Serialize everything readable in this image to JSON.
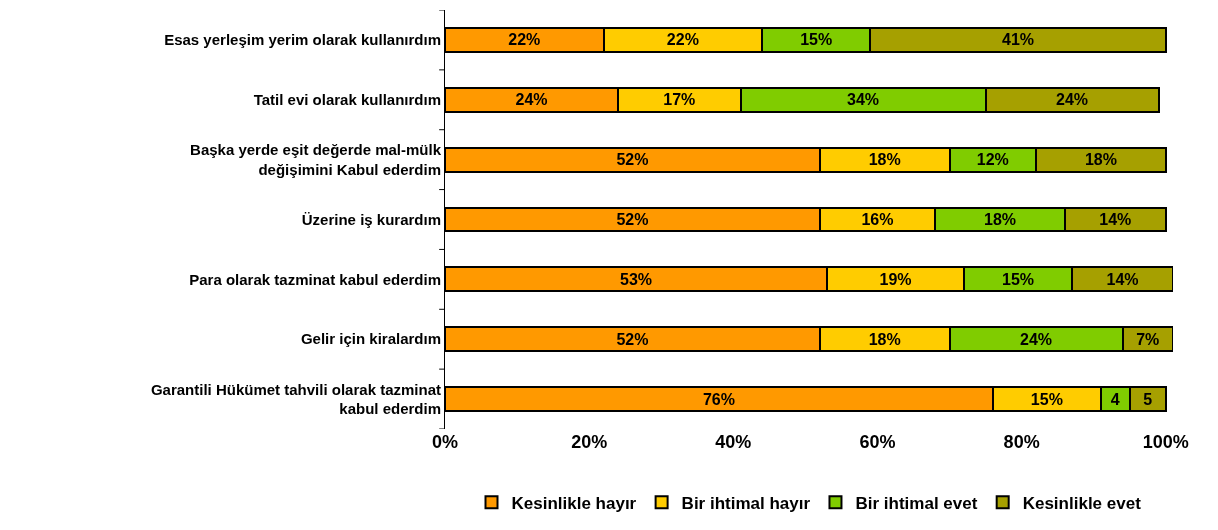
{
  "chart_data": {
    "type": "bar",
    "orientation": "horizontal",
    "stacked": true,
    "categories": [
      "Esas yerleşim yerim olarak kullanırdım",
      "Tatil evi olarak kullanırdım",
      "Başka yerde eşit değerde mal-mülk\ndeğişimini Kabul ederdim",
      "Üzerine iş kurardım",
      "Para olarak tazminat kabul ederdim",
      "Gelir için kiralardım",
      "Garantili Hükümet tahvili olarak tazminat\nkabul ederdim"
    ],
    "series": [
      {
        "name": "Kesinlikle hayır",
        "color": "#ff9900",
        "values": [
          22,
          24,
          52,
          52,
          53,
          52,
          76
        ],
        "value_labels": [
          "22%",
          "24%",
          "52%",
          "52%",
          "53%",
          "52%",
          "76%"
        ]
      },
      {
        "name": "Bir ihtimal hayır",
        "color": "#ffcc00",
        "values": [
          22,
          17,
          18,
          16,
          19,
          18,
          15
        ],
        "value_labels": [
          "22%",
          "17%",
          "18%",
          "16%",
          "19%",
          "18%",
          "15%"
        ]
      },
      {
        "name": "Bir ihtimal evet",
        "color": "#80cc00",
        "values": [
          15,
          34,
          12,
          18,
          15,
          24,
          4
        ],
        "value_labels": [
          "15%",
          "34%",
          "12%",
          "18%",
          "15%",
          "24%",
          "4"
        ]
      },
      {
        "name": "Kesinlikle evet",
        "color": "#a6a000",
        "values": [
          41,
          24,
          18,
          14,
          14,
          7,
          5
        ],
        "value_labels": [
          "41%",
          "24%",
          "18%",
          "14%",
          "14%",
          "7%",
          "5"
        ]
      }
    ],
    "xlim": [
      0,
      101
    ],
    "xticks": [
      {
        "value": 0,
        "label": "0%"
      },
      {
        "value": 20,
        "label": "20%"
      },
      {
        "value": 40,
        "label": "40%"
      },
      {
        "value": 60,
        "label": "60%"
      },
      {
        "value": 80,
        "label": "80%"
      },
      {
        "value": 100,
        "label": "100%"
      }
    ],
    "legend": "bottom"
  }
}
